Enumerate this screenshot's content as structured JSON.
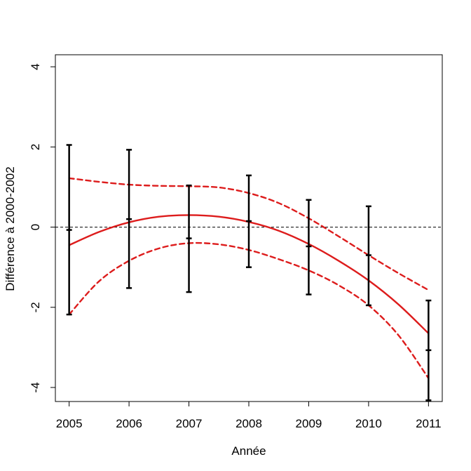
{
  "chart_data": {
    "type": "line",
    "title": "",
    "xlabel": "Année",
    "ylabel": "Différence à 2000-2002",
    "xlim": [
      2004.77,
      2011.23
    ],
    "ylim": [
      -4.35,
      4.3
    ],
    "x_ticks": [
      {
        "value": 2005,
        "label": "2005"
      },
      {
        "value": 2006,
        "label": "2006"
      },
      {
        "value": 2007,
        "label": "2007"
      },
      {
        "value": 2008,
        "label": "2008"
      },
      {
        "value": 2009,
        "label": "2009"
      },
      {
        "value": 2010,
        "label": "2010"
      },
      {
        "value": 2011,
        "label": "2011"
      }
    ],
    "y_ticks": [
      {
        "value": -4,
        "label": "-4"
      },
      {
        "value": -2,
        "label": "-2"
      },
      {
        "value": 0,
        "label": "0"
      },
      {
        "value": 2,
        "label": "2"
      },
      {
        "value": 4,
        "label": "4"
      }
    ],
    "reference_line": {
      "y": 0,
      "style": "dashed",
      "color": "#000000"
    },
    "error_bars": {
      "name": "observed",
      "color": "#000000",
      "points": [
        {
          "x": 2005,
          "mean": -0.07,
          "lower": -2.18,
          "upper": 2.05
        },
        {
          "x": 2006,
          "mean": 0.2,
          "lower": -1.52,
          "upper": 1.93
        },
        {
          "x": 2007,
          "mean": -0.28,
          "lower": -1.62,
          "upper": 1.04
        },
        {
          "x": 2008,
          "mean": 0.15,
          "lower": -1.0,
          "upper": 1.29
        },
        {
          "x": 2009,
          "mean": -0.48,
          "lower": -1.68,
          "upper": 0.68
        },
        {
          "x": 2010,
          "mean": -0.7,
          "lower": -1.95,
          "upper": 0.52
        },
        {
          "x": 2011,
          "mean": -3.07,
          "lower": -4.32,
          "upper": -1.83
        }
      ]
    },
    "series": [
      {
        "name": "fit",
        "style": "solid",
        "color": "#dd1c1c",
        "x": [
          2005,
          2005.5,
          2006,
          2006.5,
          2007,
          2007.5,
          2008,
          2008.5,
          2009,
          2009.5,
          2010,
          2010.5,
          2011
        ],
        "y": [
          -0.45,
          -0.12,
          0.12,
          0.26,
          0.3,
          0.26,
          0.13,
          -0.09,
          -0.42,
          -0.84,
          -1.33,
          -1.93,
          -2.65
        ]
      },
      {
        "name": "upper-bound",
        "style": "dashed",
        "color": "#dd1c1c",
        "x": [
          2005,
          2005.5,
          2006,
          2006.5,
          2007,
          2007.5,
          2008,
          2008.5,
          2009,
          2009.5,
          2010,
          2010.5,
          2011
        ],
        "y": [
          1.22,
          1.13,
          1.06,
          1.03,
          1.02,
          0.99,
          0.85,
          0.6,
          0.22,
          -0.23,
          -0.7,
          -1.15,
          -1.57
        ]
      },
      {
        "name": "lower-bound",
        "style": "dashed",
        "color": "#dd1c1c",
        "x": [
          2005,
          2005.5,
          2006,
          2006.5,
          2007,
          2007.5,
          2008,
          2008.5,
          2009,
          2009.5,
          2010,
          2010.5,
          2011
        ],
        "y": [
          -2.18,
          -1.35,
          -0.84,
          -0.53,
          -0.4,
          -0.43,
          -0.57,
          -0.8,
          -1.08,
          -1.45,
          -1.95,
          -2.7,
          -3.77
        ]
      }
    ]
  }
}
